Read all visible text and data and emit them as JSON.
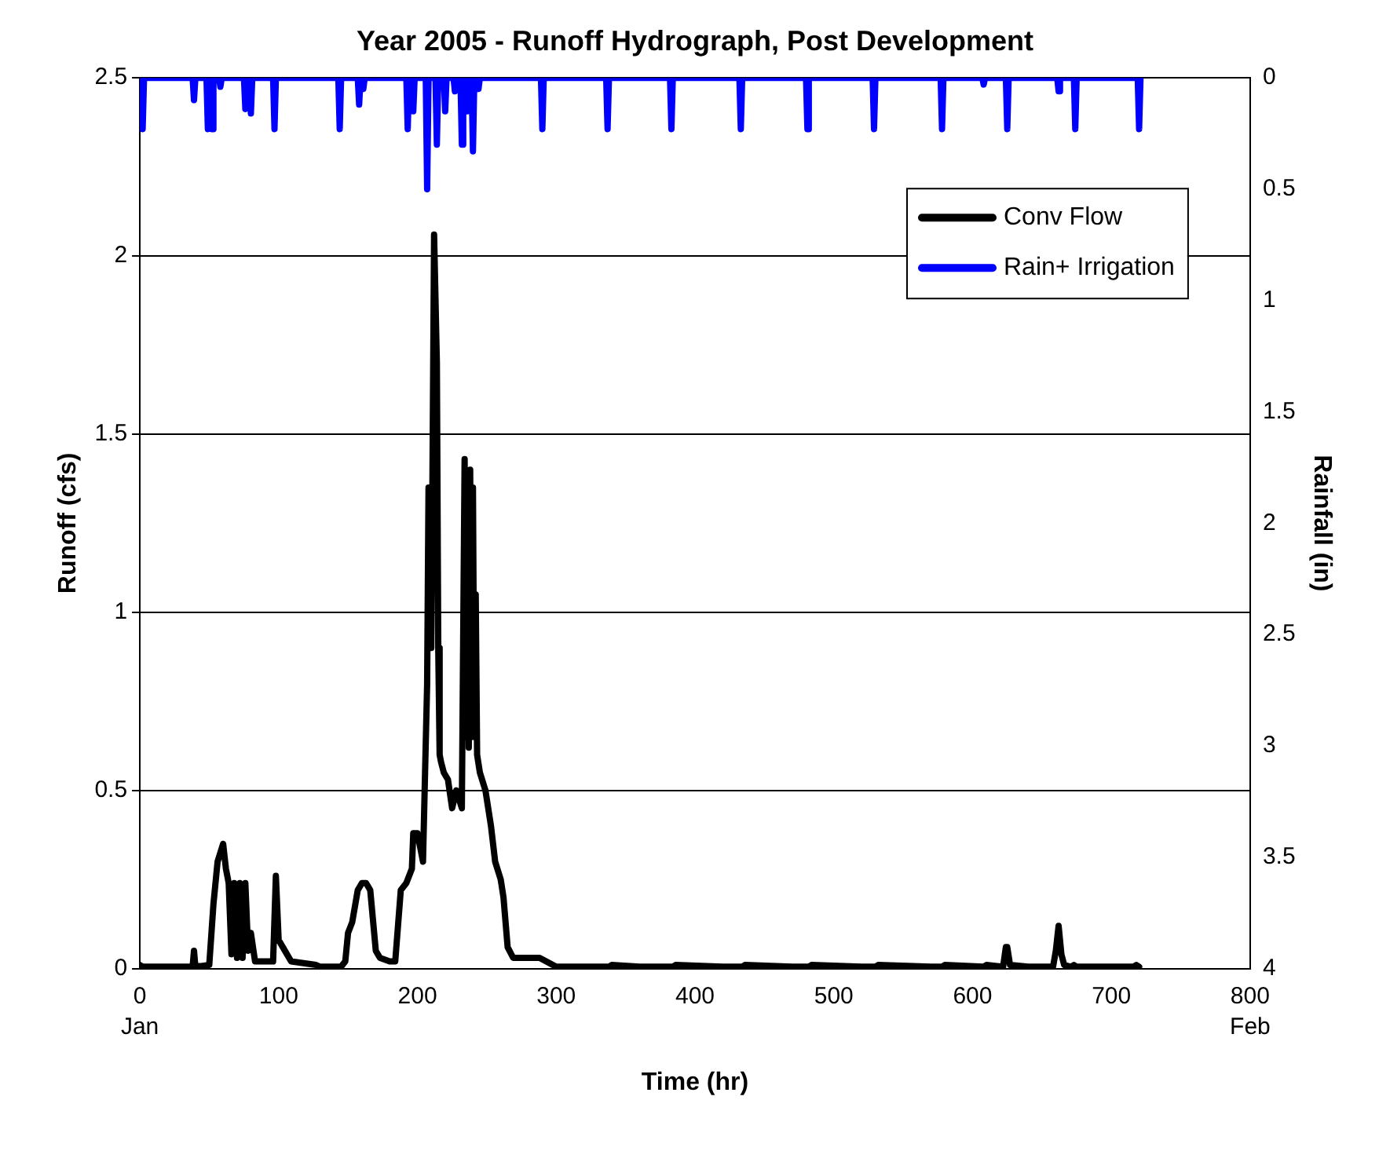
{
  "chart_data": {
    "type": "line",
    "title": "Year 2005 - Runoff Hydrograph, Post Development",
    "xlabel": "Time (hr)",
    "ylabel": "Runoff (cfs)",
    "y2label": "Rainfall (in)",
    "annotations": [
      "Jan",
      "Feb"
    ],
    "xlim": [
      0,
      800
    ],
    "xticks": [
      0,
      100,
      200,
      300,
      400,
      500,
      600,
      700,
      800
    ],
    "ylim": [
      0,
      2.5
    ],
    "yticks": [
      0,
      0.5,
      1,
      1.5,
      2,
      2.5
    ],
    "y2lim": [
      4,
      0
    ],
    "y2ticks": [
      0,
      0.5,
      1,
      1.5,
      2,
      2.5,
      3,
      3.5,
      4
    ],
    "grid": "y",
    "legend": "top right",
    "marker": "none",
    "line_style": "solid",
    "series": [
      {
        "name": "Conv Flow",
        "color": "#000000",
        "x": [
          0,
          2,
          38,
          39,
          40,
          50,
          53,
          56,
          60,
          62,
          64,
          66,
          68,
          70,
          72,
          74,
          76,
          78,
          80,
          83,
          96,
          98,
          100,
          103,
          109,
          127,
          130,
          145,
          148,
          150,
          153,
          157,
          160,
          163,
          166,
          170,
          173,
          180,
          184,
          188,
          192,
          196,
          197,
          200,
          204,
          207,
          208,
          210,
          212,
          214,
          215,
          216,
          217,
          219,
          222,
          225,
          228,
          232,
          233,
          234,
          235,
          236,
          237,
          238,
          239,
          240,
          241,
          242,
          243,
          245,
          249,
          253,
          256,
          260,
          262,
          265,
          269,
          280,
          288,
          300,
          320,
          338,
          340,
          360,
          384,
          386,
          420,
          434,
          436,
          470,
          482,
          484,
          520,
          530,
          532,
          570,
          578,
          580,
          608,
          610,
          622,
          624,
          625,
          627,
          640,
          658,
          660,
          662,
          664,
          666,
          671,
          673,
          675,
          716,
          718,
          720
        ],
        "values": [
          0.01,
          0.005,
          0.005,
          0.05,
          0.005,
          0.01,
          0.18,
          0.3,
          0.35,
          0.28,
          0.24,
          0.04,
          0.24,
          0.03,
          0.24,
          0.03,
          0.24,
          0.05,
          0.1,
          0.02,
          0.02,
          0.26,
          0.08,
          0.06,
          0.02,
          0.01,
          0.005,
          0.005,
          0.02,
          0.1,
          0.13,
          0.22,
          0.24,
          0.24,
          0.22,
          0.05,
          0.03,
          0.02,
          0.02,
          0.22,
          0.24,
          0.28,
          0.38,
          0.38,
          0.3,
          0.8,
          1.35,
          0.9,
          2.06,
          1.7,
          0.9,
          0.6,
          0.58,
          0.55,
          0.53,
          0.45,
          0.5,
          0.45,
          0.45,
          1.43,
          0.65,
          1.38,
          0.62,
          1.4,
          0.65,
          1.35,
          0.65,
          1.05,
          0.6,
          0.55,
          0.5,
          0.4,
          0.3,
          0.25,
          0.2,
          0.06,
          0.03,
          0.03,
          0.03,
          0.005,
          0.005,
          0.005,
          0.01,
          0.005,
          0.005,
          0.01,
          0.005,
          0.005,
          0.01,
          0.005,
          0.005,
          0.01,
          0.005,
          0.005,
          0.01,
          0.005,
          0.005,
          0.01,
          0.005,
          0.01,
          0.005,
          0.06,
          0.06,
          0.01,
          0.005,
          0.005,
          0.05,
          0.12,
          0.04,
          0.01,
          0.005,
          0.01,
          0.005,
          0.005,
          0.01,
          0.005
        ]
      },
      {
        "name": "Rain+ Irrigation",
        "color": "#0000ff",
        "axis": "y2",
        "x": [
          0,
          1,
          2,
          3,
          38,
          39,
          40,
          48,
          49,
          50,
          51,
          52,
          53,
          57,
          58,
          59,
          75,
          76,
          77,
          79,
          80,
          81,
          96,
          97,
          98,
          143,
          144,
          145,
          157,
          158,
          159,
          160,
          161,
          162,
          192,
          193,
          194,
          196,
          197,
          198,
          206,
          207,
          208,
          213,
          214,
          215,
          219,
          220,
          221,
          226,
          227,
          228,
          231,
          232,
          233,
          235,
          236,
          237,
          239,
          240,
          241,
          243,
          244,
          245,
          289,
          290,
          291,
          336,
          337,
          338,
          382,
          383,
          384,
          432,
          433,
          434,
          480,
          481,
          482,
          528,
          529,
          530,
          577,
          578,
          579,
          607,
          608,
          609,
          624,
          625,
          626,
          661,
          662,
          663,
          673,
          674,
          675,
          719,
          720,
          721
        ],
        "values": [
          0,
          0,
          0.23,
          0,
          0,
          0.1,
          0,
          0,
          0.23,
          0,
          0,
          0.23,
          0,
          0,
          0.04,
          0,
          0,
          0.14,
          0,
          0,
          0.16,
          0,
          0,
          0.23,
          0,
          0,
          0.23,
          0,
          0,
          0.12,
          0,
          0,
          0.05,
          0,
          0,
          0.23,
          0,
          0,
          0.15,
          0,
          0,
          0.5,
          0,
          0,
          0.3,
          0,
          0,
          0.15,
          0,
          0,
          0.06,
          0,
          0,
          0.3,
          0,
          0,
          0.15,
          0,
          0,
          0.33,
          0,
          0,
          0.05,
          0,
          0,
          0.23,
          0,
          0,
          0.23,
          0,
          0,
          0.23,
          0,
          0,
          0.23,
          0,
          0,
          0.23,
          0,
          0,
          0.23,
          0,
          0,
          0.23,
          0,
          0,
          0.03,
          0,
          0,
          0.23,
          0,
          0,
          0.06,
          0,
          0,
          0.23,
          0,
          0,
          0.23,
          0
        ]
      }
    ]
  }
}
